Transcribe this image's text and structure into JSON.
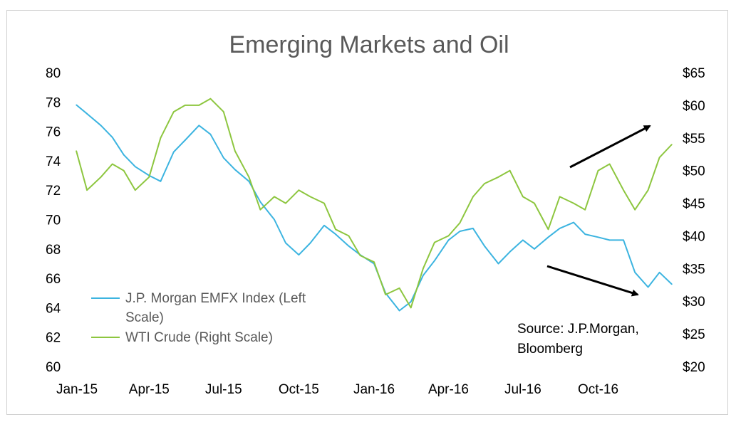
{
  "chart_data": {
    "type": "line",
    "title": "Emerging Markets and Oil",
    "x_tick_labels": [
      "Jan-15",
      "Apr-15",
      "Jul-15",
      "Oct-15",
      "Jan-16",
      "Apr-16",
      "Jul-16",
      "Oct-16"
    ],
    "y_left": {
      "ticks": [
        "60",
        "62",
        "64",
        "66",
        "68",
        "70",
        "72",
        "74",
        "76",
        "78",
        "80"
      ],
      "lim": [
        60,
        80
      ]
    },
    "y_right": {
      "ticks": [
        "$20",
        "$25",
        "$30",
        "$35",
        "$40",
        "$45",
        "$50",
        "$55",
        "$60",
        "$65"
      ],
      "lim": [
        20,
        65
      ]
    },
    "grid": false,
    "legend_position": "lower-left",
    "series": [
      {
        "name": "J.P. Morgan EMFX Index (Left Scale)",
        "legend_lines": [
          "J.P. Morgan EMFX Index (Left",
          "Scale)"
        ],
        "axis": "left",
        "color": "#3cb4e0",
        "x": [
          "2015-01-02",
          "2015-01-15",
          "2015-02-01",
          "2015-02-15",
          "2015-03-01",
          "2015-03-15",
          "2015-04-01",
          "2015-04-15",
          "2015-05-01",
          "2015-05-15",
          "2015-06-01",
          "2015-06-15",
          "2015-07-01",
          "2015-07-15",
          "2015-08-01",
          "2015-08-15",
          "2015-09-01",
          "2015-09-15",
          "2015-10-01",
          "2015-10-15",
          "2015-11-01",
          "2015-11-15",
          "2015-12-01",
          "2015-12-15",
          "2016-01-01",
          "2016-01-15",
          "2016-02-01",
          "2016-02-15",
          "2016-03-01",
          "2016-03-15",
          "2016-04-01",
          "2016-04-15",
          "2016-05-01",
          "2016-05-15",
          "2016-06-01",
          "2016-06-15",
          "2016-07-01",
          "2016-07-15",
          "2016-08-01",
          "2016-08-15",
          "2016-09-01",
          "2016-09-15",
          "2016-10-01",
          "2016-10-15",
          "2016-11-01",
          "2016-11-15",
          "2016-12-01",
          "2016-12-15",
          "2016-12-30"
        ],
        "y": [
          77.8,
          77.2,
          76.4,
          75.6,
          74.4,
          73.6,
          73.0,
          72.6,
          74.6,
          75.4,
          76.4,
          75.8,
          74.2,
          73.4,
          72.6,
          71.2,
          70.0,
          68.4,
          67.6,
          68.4,
          69.6,
          69.0,
          68.2,
          67.6,
          67.0,
          65.0,
          63.8,
          64.4,
          66.2,
          67.2,
          68.6,
          69.2,
          69.4,
          68.2,
          67.0,
          67.8,
          68.6,
          68.0,
          68.8,
          69.4,
          69.8,
          69.0,
          68.8,
          68.6,
          68.6,
          66.4,
          65.4,
          66.4,
          65.6
        ]
      },
      {
        "name": "WTI Crude (Right Scale)",
        "legend_lines": [
          "WTI Crude (Right Scale)"
        ],
        "axis": "right",
        "color": "#8dc63f",
        "x": [
          "2015-01-02",
          "2015-01-15",
          "2015-02-01",
          "2015-02-15",
          "2015-03-01",
          "2015-03-15",
          "2015-04-01",
          "2015-04-15",
          "2015-05-01",
          "2015-05-15",
          "2015-06-01",
          "2015-06-15",
          "2015-07-01",
          "2015-07-15",
          "2015-08-01",
          "2015-08-15",
          "2015-09-01",
          "2015-09-15",
          "2015-10-01",
          "2015-10-15",
          "2015-11-01",
          "2015-11-15",
          "2015-12-01",
          "2015-12-15",
          "2016-01-01",
          "2016-01-15",
          "2016-02-01",
          "2016-02-15",
          "2016-03-01",
          "2016-03-15",
          "2016-04-01",
          "2016-04-15",
          "2016-05-01",
          "2016-05-15",
          "2016-06-01",
          "2016-06-15",
          "2016-07-01",
          "2016-07-15",
          "2016-08-01",
          "2016-08-15",
          "2016-09-01",
          "2016-09-15",
          "2016-10-01",
          "2016-10-15",
          "2016-11-01",
          "2016-11-15",
          "2016-12-01",
          "2016-12-15",
          "2016-12-30"
        ],
        "y": [
          53,
          47,
          49,
          51,
          50,
          47,
          49,
          55,
          59,
          60,
          60,
          61,
          59,
          53,
          49,
          44,
          46,
          45,
          47,
          46,
          45,
          41,
          40,
          37,
          36,
          31,
          32,
          29,
          35,
          39,
          40,
          42,
          46,
          48,
          49,
          50,
          46,
          45,
          41,
          46,
          45,
          44,
          50,
          51,
          47,
          44,
          47,
          52,
          54
        ]
      }
    ],
    "annotations": {
      "source_lines": [
        "Source: J.P.Morgan,",
        "Bloomberg"
      ],
      "arrows": [
        "up",
        "down"
      ]
    }
  }
}
